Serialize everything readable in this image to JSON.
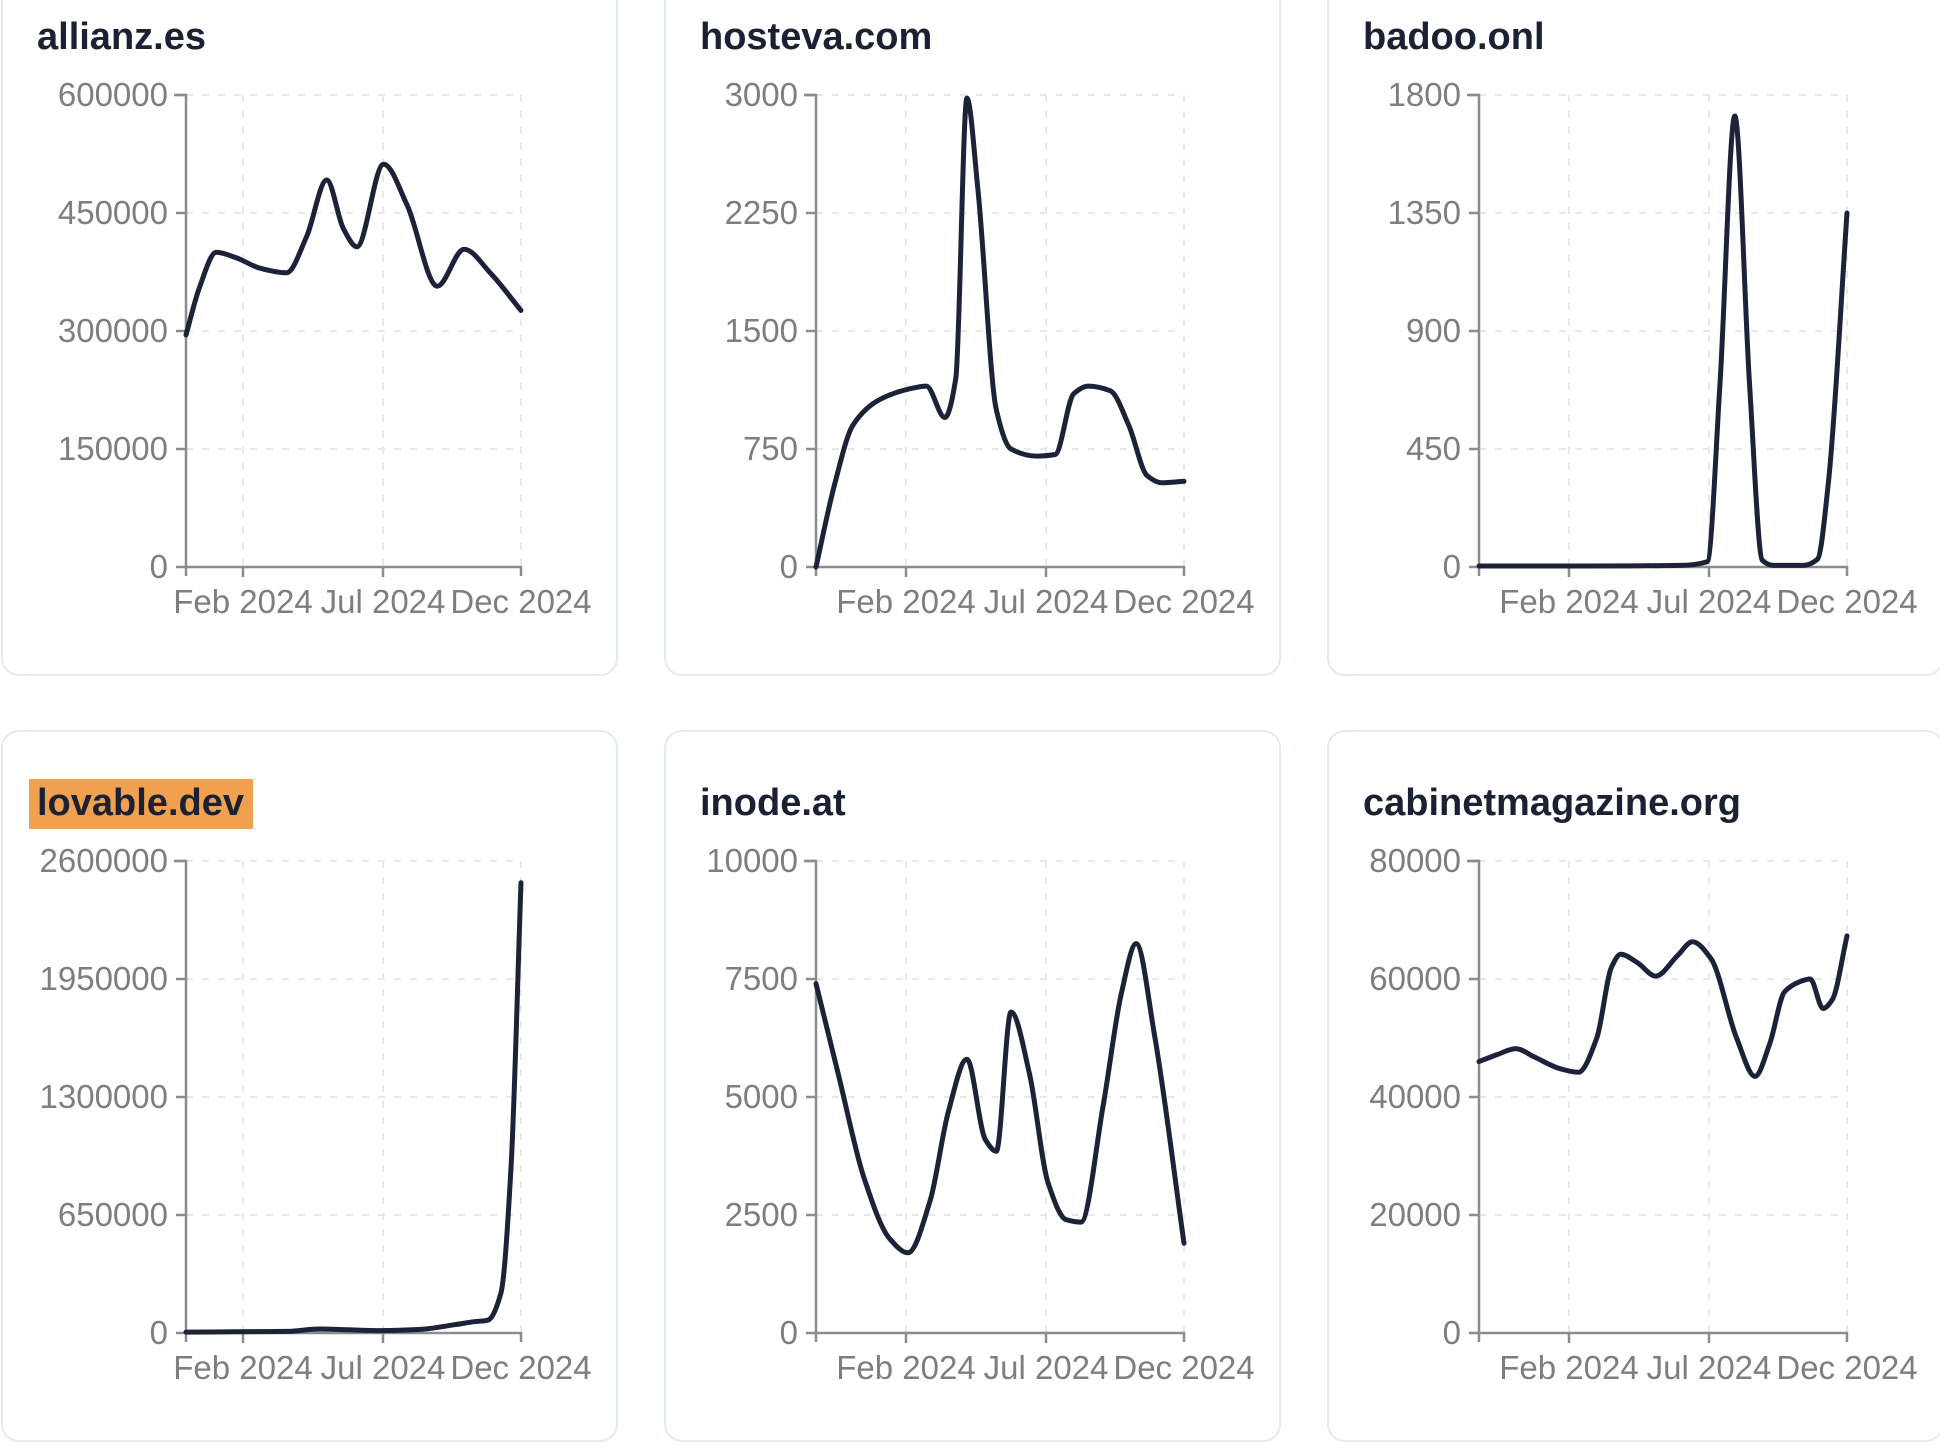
{
  "colors": {
    "line": "#1c2339",
    "title": "#1a2133",
    "axis": "#8c8c8c",
    "tick_label": "#7e7e7e",
    "grid": "#e9e9ec",
    "card_border": "#e5e9f0",
    "find_highlight": "#f0a04f",
    "background": "#ffffff"
  },
  "chart_data": [
    {
      "type": "line",
      "title": "allianz.es",
      "title_highlighted": false,
      "x_tick_labels": [
        "Feb 2024",
        "Jul 2024",
        "Dec 2024"
      ],
      "y_ticks": [
        0,
        150000,
        300000,
        450000,
        600000
      ],
      "ylim": [
        0,
        600000
      ],
      "xlabel": "",
      "ylabel": "",
      "grid": "dashed",
      "legend": "none",
      "points": [
        [
          0,
          295000
        ],
        [
          0.04,
          355000
        ],
        [
          0.09,
          400000
        ],
        [
          0.15,
          393000
        ],
        [
          0.22,
          380000
        ],
        [
          0.3,
          374000
        ],
        [
          0.36,
          420000
        ],
        [
          0.42,
          492000
        ],
        [
          0.47,
          430000
        ],
        [
          0.51,
          407000
        ],
        [
          0.59,
          512000
        ],
        [
          0.66,
          460000
        ],
        [
          0.75,
          357000
        ],
        [
          0.83,
          404000
        ],
        [
          0.91,
          373000
        ],
        [
          1,
          326000
        ]
      ]
    },
    {
      "type": "line",
      "title": "hosteva.com",
      "title_highlighted": false,
      "x_tick_labels": [
        "Feb 2024",
        "Jul 2024",
        "Dec 2024"
      ],
      "y_ticks": [
        0,
        750,
        1500,
        2250,
        3000
      ],
      "ylim": [
        0,
        3000
      ],
      "xlabel": "",
      "ylabel": "",
      "grid": "dashed",
      "legend": "none",
      "points": [
        [
          0,
          0
        ],
        [
          0.05,
          520
        ],
        [
          0.1,
          900
        ],
        [
          0.17,
          1060
        ],
        [
          0.25,
          1130
        ],
        [
          0.3,
          1150
        ],
        [
          0.35,
          950
        ],
        [
          0.38,
          1200
        ],
        [
          0.41,
          2980
        ],
        [
          0.44,
          2400
        ],
        [
          0.49,
          1000
        ],
        [
          0.53,
          750
        ],
        [
          0.6,
          705
        ],
        [
          0.65,
          715
        ],
        [
          0.7,
          1100
        ],
        [
          0.74,
          1150
        ],
        [
          0.8,
          1120
        ],
        [
          0.85,
          900
        ],
        [
          0.9,
          580
        ],
        [
          0.94,
          535
        ],
        [
          1,
          545
        ]
      ]
    },
    {
      "type": "line",
      "title": "badoo.onl",
      "title_highlighted": false,
      "x_tick_labels": [
        "Feb 2024",
        "Jul 2024",
        "Dec 2024"
      ],
      "y_ticks": [
        0,
        450,
        900,
        1350,
        1800
      ],
      "ylim": [
        0,
        1800
      ],
      "xlabel": "",
      "ylabel": "",
      "grid": "dashed",
      "legend": "none",
      "points": [
        [
          0,
          4
        ],
        [
          0.3,
          4
        ],
        [
          0.55,
          6
        ],
        [
          0.62,
          20
        ],
        [
          0.655,
          700
        ],
        [
          0.695,
          1720
        ],
        [
          0.735,
          700
        ],
        [
          0.77,
          25
        ],
        [
          0.8,
          6
        ],
        [
          0.88,
          6
        ],
        [
          0.92,
          30
        ],
        [
          0.95,
          330
        ],
        [
          1,
          1350
        ]
      ]
    },
    {
      "type": "line",
      "title": "lovable.dev",
      "title_highlighted": true,
      "x_tick_labels": [
        "Feb 2024",
        "Jul 2024",
        "Dec 2024"
      ],
      "y_ticks": [
        0,
        650000,
        1300000,
        1950000,
        2600000
      ],
      "ylim": [
        0,
        2600000
      ],
      "xlabel": "",
      "ylabel": "",
      "grid": "dashed",
      "legend": "none",
      "points": [
        [
          0,
          5000
        ],
        [
          0.15,
          7000
        ],
        [
          0.3,
          9000
        ],
        [
          0.4,
          22000
        ],
        [
          0.48,
          18000
        ],
        [
          0.58,
          13000
        ],
        [
          0.7,
          20000
        ],
        [
          0.8,
          45000
        ],
        [
          0.86,
          62000
        ],
        [
          0.9,
          70000
        ],
        [
          0.94,
          220000
        ],
        [
          0.97,
          900000
        ],
        [
          1,
          2480000
        ]
      ]
    },
    {
      "type": "line",
      "title": "inode.at",
      "title_highlighted": false,
      "x_tick_labels": [
        "Feb 2024",
        "Jul 2024",
        "Dec 2024"
      ],
      "y_ticks": [
        0,
        2500,
        5000,
        7500,
        10000
      ],
      "ylim": [
        0,
        10000
      ],
      "xlabel": "",
      "ylabel": "",
      "grid": "dashed",
      "legend": "none",
      "points": [
        [
          0,
          7400
        ],
        [
          0.06,
          5500
        ],
        [
          0.13,
          3300
        ],
        [
          0.2,
          2000
        ],
        [
          0.25,
          1700
        ],
        [
          0.31,
          2800
        ],
        [
          0.36,
          4700
        ],
        [
          0.41,
          5800
        ],
        [
          0.46,
          4100
        ],
        [
          0.49,
          3850
        ],
        [
          0.53,
          6800
        ],
        [
          0.58,
          5500
        ],
        [
          0.63,
          3200
        ],
        [
          0.68,
          2400
        ],
        [
          0.72,
          2350
        ],
        [
          0.78,
          4800
        ],
        [
          0.83,
          7200
        ],
        [
          0.87,
          8250
        ],
        [
          0.92,
          6300
        ],
        [
          1,
          1900
        ]
      ]
    },
    {
      "type": "line",
      "title": "cabinetmagazine.org",
      "title_highlighted": false,
      "x_tick_labels": [
        "Feb 2024",
        "Jul 2024",
        "Dec 2024"
      ],
      "y_ticks": [
        0,
        20000,
        40000,
        60000,
        80000
      ],
      "ylim": [
        0,
        80000
      ],
      "xlabel": "",
      "ylabel": "",
      "grid": "dashed",
      "legend": "none",
      "points": [
        [
          0,
          46000
        ],
        [
          0.05,
          47200
        ],
        [
          0.1,
          48200
        ],
        [
          0.15,
          46800
        ],
        [
          0.22,
          44800
        ],
        [
          0.27,
          44200
        ],
        [
          0.32,
          50000
        ],
        [
          0.36,
          62000
        ],
        [
          0.385,
          64200
        ],
        [
          0.43,
          62800
        ],
        [
          0.48,
          60500
        ],
        [
          0.54,
          64000
        ],
        [
          0.58,
          66300
        ],
        [
          0.63,
          63500
        ],
        [
          0.7,
          50000
        ],
        [
          0.75,
          43500
        ],
        [
          0.79,
          49000
        ],
        [
          0.83,
          57800
        ],
        [
          0.87,
          59500
        ],
        [
          0.9,
          60000
        ],
        [
          0.935,
          55000
        ],
        [
          0.96,
          56500
        ],
        [
          1,
          67300
        ]
      ]
    }
  ]
}
